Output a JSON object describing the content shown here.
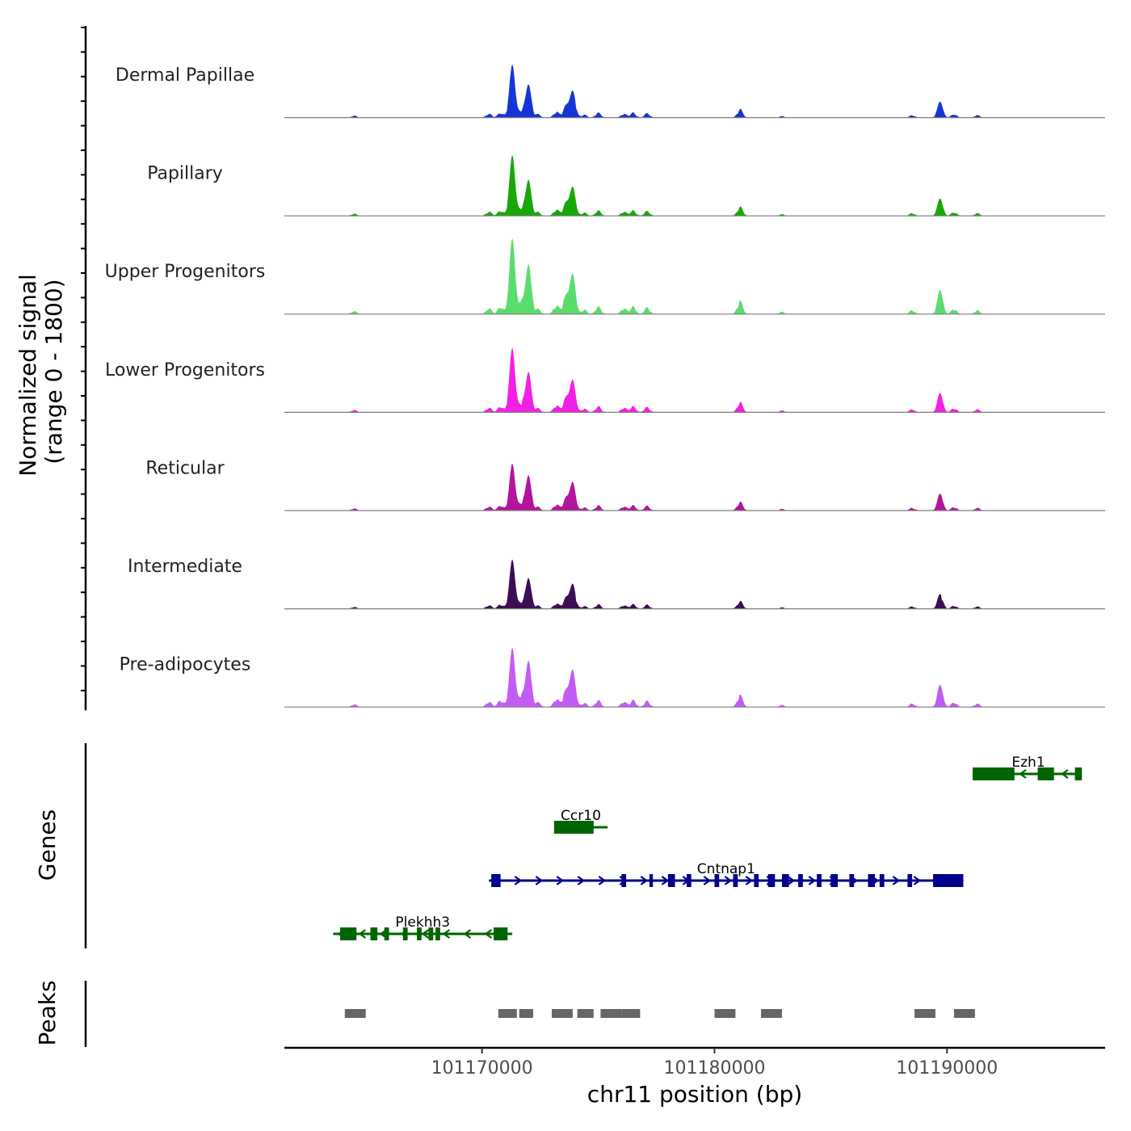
{
  "chart_data": {
    "type": "area",
    "region": {
      "chromosome": "chr11",
      "start": 101161500,
      "end": 101196800
    },
    "coverage": {
      "ylabel_line1": "Normalized signal",
      "ylabel_line2": "(range 0 - 1800)",
      "range": [
        0,
        1800
      ],
      "tracks": [
        {
          "name": "Dermal Papillae",
          "color": "#1535d6",
          "peak_scale": 0.7,
          "bump_scale": 1.0
        },
        {
          "name": "Papillary",
          "color": "#18a80a",
          "peak_scale": 0.8,
          "bump_scale": 0.95
        },
        {
          "name": "Upper Progenitors",
          "color": "#5ddc6e",
          "peak_scale": 1.0,
          "bump_scale": 1.05
        },
        {
          "name": "Lower Progenitors",
          "color": "#f41fe4",
          "peak_scale": 0.85,
          "bump_scale": 1.0
        },
        {
          "name": "Reticular",
          "color": "#b4149e",
          "peak_scale": 0.62,
          "bump_scale": 1.2
        },
        {
          "name": "Intermediate",
          "color": "#3d0d55",
          "peak_scale": 0.65,
          "bump_scale": 1.0
        },
        {
          "name": "Pre-adipocytes",
          "color": "#c25cf4",
          "peak_scale": 0.78,
          "bump_scale": 1.25
        }
      ],
      "signal_peaks": [
        {
          "pos": 101164500,
          "height": 0.04
        },
        {
          "pos": 101170300,
          "height": 0.08
        },
        {
          "pos": 101170800,
          "height": 0.1
        },
        {
          "pos": 101171300,
          "height": 1.0
        },
        {
          "pos": 101171700,
          "height": 0.15
        },
        {
          "pos": 101172000,
          "height": 0.62
        },
        {
          "pos": 101172400,
          "height": 0.07
        },
        {
          "pos": 101173200,
          "height": 0.12
        },
        {
          "pos": 101173600,
          "height": 0.22
        },
        {
          "pos": 101173900,
          "height": 0.5
        },
        {
          "pos": 101174400,
          "height": 0.06
        },
        {
          "pos": 101175000,
          "height": 0.1
        },
        {
          "pos": 101176100,
          "height": 0.08
        },
        {
          "pos": 101176500,
          "height": 0.1
        },
        {
          "pos": 101177100,
          "height": 0.09
        },
        {
          "pos": 101181100,
          "height": 0.17
        },
        {
          "pos": 101182900,
          "height": 0.03
        },
        {
          "pos": 101188500,
          "height": 0.05
        },
        {
          "pos": 101189700,
          "height": 0.3
        },
        {
          "pos": 101190300,
          "height": 0.07
        },
        {
          "pos": 101191300,
          "height": 0.05
        }
      ]
    },
    "genes": {
      "ylabel": "Genes",
      "items": [
        {
          "name": "Ezh1",
          "strand": "-",
          "start": 101191100,
          "end": 101195800,
          "color": "#006400",
          "exons": [
            [
              101191100,
              101192900
            ],
            [
              101193900,
              101194600
            ],
            [
              101195500,
              101195800
            ]
          ]
        },
        {
          "name": "Ccr10",
          "strand": "-",
          "start": 101173100,
          "end": 101175400,
          "color": "#006400",
          "exons": [
            [
              101173100,
              101174800
            ]
          ]
        },
        {
          "name": "Cntnap1",
          "strand": "+",
          "start": 101170300,
          "end": 101190700,
          "color": "#00008b",
          "exons": [
            [
              101170400,
              101170800
            ],
            [
              101176000,
              101176200
            ],
            [
              101177200,
              101177350
            ],
            [
              101178000,
              101178300
            ],
            [
              101178800,
              101179000
            ],
            [
              101180000,
              101180200
            ],
            [
              101180800,
              101181000
            ],
            [
              101181700,
              101181900
            ],
            [
              101182300,
              101182600
            ],
            [
              101182900,
              101183200
            ],
            [
              101183600,
              101183800
            ],
            [
              101184400,
              101184600
            ],
            [
              101185000,
              101185300
            ],
            [
              101185800,
              101186000
            ],
            [
              101186600,
              101186900
            ],
            [
              101187100,
              101187300
            ],
            [
              101188300,
              101188500
            ],
            [
              101189400,
              101190700
            ]
          ]
        },
        {
          "name": "Plekhh3",
          "strand": "-",
          "start": 101163600,
          "end": 101171300,
          "color": "#006400",
          "exons": [
            [
              101163900,
              101164600
            ],
            [
              101165200,
              101165500
            ],
            [
              101165800,
              101166000
            ],
            [
              101166600,
              101166800
            ],
            [
              101167200,
              101167400
            ],
            [
              101167700,
              101167900
            ],
            [
              101168000,
              101168200
            ],
            [
              101170500,
              101171100
            ]
          ]
        }
      ]
    },
    "peaks": {
      "ylabel": "Peaks",
      "color": "#666666",
      "regions": [
        [
          101164100,
          101165000
        ],
        [
          101170700,
          101171500
        ],
        [
          101171600,
          101172200
        ],
        [
          101173000,
          101173900
        ],
        [
          101174100,
          101174800
        ],
        [
          101175100,
          101176000
        ],
        [
          101176000,
          101176800
        ],
        [
          101180000,
          101180900
        ],
        [
          101182000,
          101182900
        ],
        [
          101188600,
          101189500
        ],
        [
          101190300,
          101191200
        ]
      ]
    },
    "x_axis": {
      "title": "chr11 position (bp)",
      "ticks": [
        101170000,
        101180000,
        101190000
      ],
      "tick_labels": [
        "101170000",
        "101180000",
        "101190000"
      ]
    }
  }
}
